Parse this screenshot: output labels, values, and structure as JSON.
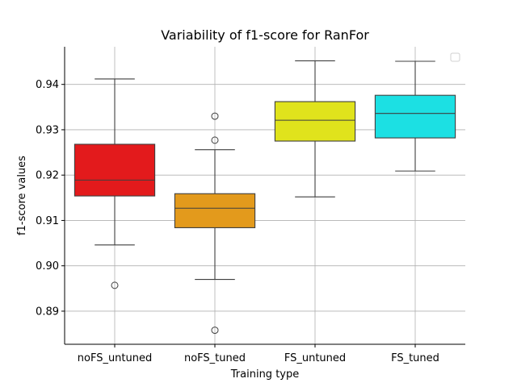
{
  "chart_data": {
    "type": "box",
    "title": "Variability of f1-score  for RanFor",
    "xlabel": "Training type",
    "ylabel": "f1-score values",
    "ylim": [
      0.8827,
      0.9483
    ],
    "yticks": [
      "0.89",
      "0.90",
      "0.91",
      "0.92",
      "0.93",
      "0.94"
    ],
    "ytick_values": [
      0.89,
      0.9,
      0.91,
      0.92,
      0.93,
      0.94
    ],
    "grid": true,
    "legend": "top-right (empty)",
    "categories": [
      "noFS_untuned",
      "noFS_tuned",
      "FS_untuned",
      "FS_tuned"
    ],
    "boxes": [
      {
        "category": "noFS_untuned",
        "color": "#e31a1c",
        "whisker_low": 0.9046,
        "q1": 0.9154,
        "median": 0.9189,
        "q3": 0.9268,
        "whisker_high": 0.9412,
        "outliers": [
          0.8957
        ]
      },
      {
        "category": "noFS_tuned",
        "color": "#e39a1c",
        "whisker_low": 0.897,
        "q1": 0.9084,
        "median": 0.9127,
        "q3": 0.9159,
        "whisker_high": 0.9256,
        "outliers": [
          0.9277,
          0.933,
          0.8858
        ]
      },
      {
        "category": "FS_untuned",
        "color": "#e0e31c",
        "whisker_low": 0.9152,
        "q1": 0.9275,
        "median": 0.9321,
        "q3": 0.9362,
        "whisker_high": 0.9452,
        "outliers": []
      },
      {
        "category": "FS_tuned",
        "color": "#1ce0e3",
        "whisker_low": 0.9209,
        "q1": 0.9282,
        "median": 0.9336,
        "q3": 0.9376,
        "whisker_high": 0.9451,
        "outliers": []
      }
    ]
  }
}
